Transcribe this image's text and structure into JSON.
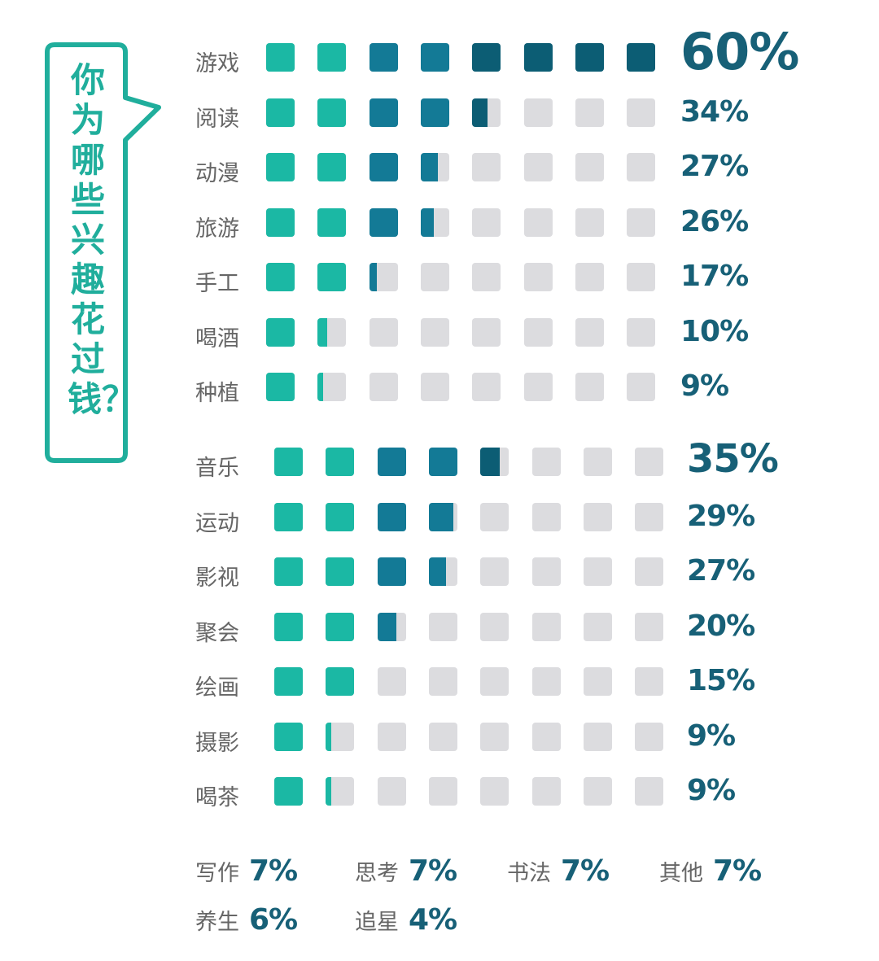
{
  "title": "你为哪些兴趣花过钱？",
  "colors": {
    "teal": "#1bb8a4",
    "mid_blue": "#137a96",
    "dark_blue": "#0c5d74",
    "empty": "#dcdcdf",
    "text_pct": "#176077",
    "bubble": "#20ae9c"
  },
  "section1": [
    {
      "label": "游戏",
      "pct": "60%"
    },
    {
      "label": "阅读",
      "pct": "34%"
    },
    {
      "label": "动漫",
      "pct": "27%"
    },
    {
      "label": "旅游",
      "pct": "26%"
    },
    {
      "label": "手工",
      "pct": "17%"
    },
    {
      "label": "喝酒",
      "pct": "10%"
    },
    {
      "label": "种植",
      "pct": "9%"
    }
  ],
  "section2": [
    {
      "label": "音乐",
      "pct": "35%"
    },
    {
      "label": "运动",
      "pct": "29%"
    },
    {
      "label": "影视",
      "pct": "27%"
    },
    {
      "label": "聚会",
      "pct": "20%"
    },
    {
      "label": "绘画",
      "pct": "15%"
    },
    {
      "label": "摄影",
      "pct": "9%"
    },
    {
      "label": "喝茶",
      "pct": "9%"
    }
  ],
  "footer": [
    {
      "label": "写作",
      "pct": "7%"
    },
    {
      "label": "思考",
      "pct": "7%"
    },
    {
      "label": "书法",
      "pct": "7%"
    },
    {
      "label": "其他",
      "pct": "7%"
    },
    {
      "label": "养生",
      "pct": "6%"
    },
    {
      "label": "追星",
      "pct": "4%"
    }
  ],
  "chart_data": {
    "type": "bar",
    "title": "你为哪些兴趣花过钱？",
    "unit": "%",
    "note": "Pictogram bar: 8 squares per row, each square ≈ 7.5%",
    "categories": [
      "游戏",
      "阅读",
      "动漫",
      "旅游",
      "手工",
      "喝酒",
      "种植",
      "音乐",
      "运动",
      "影视",
      "聚会",
      "绘画",
      "摄影",
      "喝茶",
      "写作",
      "思考",
      "书法",
      "其他",
      "养生",
      "追星"
    ],
    "values": [
      60,
      34,
      27,
      26,
      17,
      10,
      9,
      35,
      29,
      27,
      20,
      15,
      9,
      9,
      7,
      7,
      7,
      7,
      6,
      4
    ],
    "groups": [
      {
        "name": "group1",
        "categories": [
          "游戏",
          "阅读",
          "动漫",
          "旅游",
          "手工",
          "喝酒",
          "种植"
        ],
        "values": [
          60,
          34,
          27,
          26,
          17,
          10,
          9
        ]
      },
      {
        "name": "group2",
        "categories": [
          "音乐",
          "运动",
          "影视",
          "聚会",
          "绘画",
          "摄影",
          "喝茶"
        ],
        "values": [
          35,
          29,
          27,
          20,
          15,
          9,
          9
        ]
      },
      {
        "name": "others",
        "categories": [
          "写作",
          "思考",
          "书法",
          "其他",
          "养生",
          "追星"
        ],
        "values": [
          7,
          7,
          7,
          7,
          6,
          4
        ]
      }
    ],
    "xlabel": "",
    "ylabel": "",
    "ylim": [
      0,
      60
    ],
    "grid": false,
    "legend": "none"
  }
}
